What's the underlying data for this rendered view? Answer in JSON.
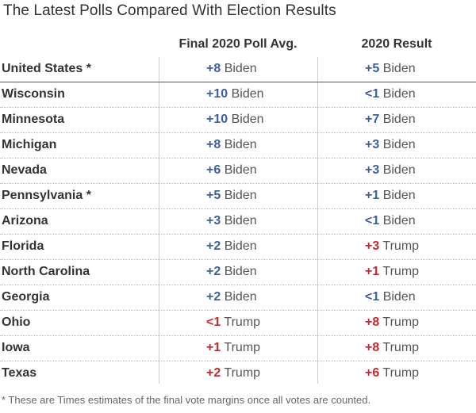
{
  "title": "The Latest Polls Compared With Election Results",
  "columns": {
    "poll": "Final 2020 Poll Avg.",
    "result": "2020 Result"
  },
  "footnote": "* These are Times estimates of the final vote margins once all votes are counted.",
  "colors": {
    "biden": "#3b5fa0",
    "trump": "#c42832"
  },
  "chart_data": {
    "type": "table",
    "title": "The Latest Polls Compared With Election Results",
    "columns": [
      "Final 2020 Poll Avg.",
      "2020 Result"
    ],
    "rows": [
      {
        "state": "United States *",
        "poll": {
          "margin": "+8",
          "winner": "Biden"
        },
        "result": {
          "margin": "+5",
          "winner": "Biden"
        }
      },
      {
        "state": "Wisconsin",
        "poll": {
          "margin": "+10",
          "winner": "Biden"
        },
        "result": {
          "margin": "<1",
          "winner": "Biden"
        }
      },
      {
        "state": "Minnesota",
        "poll": {
          "margin": "+10",
          "winner": "Biden"
        },
        "result": {
          "margin": "+7",
          "winner": "Biden"
        }
      },
      {
        "state": "Michigan",
        "poll": {
          "margin": "+8",
          "winner": "Biden"
        },
        "result": {
          "margin": "+3",
          "winner": "Biden"
        }
      },
      {
        "state": "Nevada",
        "poll": {
          "margin": "+6",
          "winner": "Biden"
        },
        "result": {
          "margin": "+3",
          "winner": "Biden"
        }
      },
      {
        "state": "Pennsylvania *",
        "poll": {
          "margin": "+5",
          "winner": "Biden"
        },
        "result": {
          "margin": "+1",
          "winner": "Biden"
        }
      },
      {
        "state": "Arizona",
        "poll": {
          "margin": "+3",
          "winner": "Biden"
        },
        "result": {
          "margin": "<1",
          "winner": "Biden"
        }
      },
      {
        "state": "Florida",
        "poll": {
          "margin": "+2",
          "winner": "Biden"
        },
        "result": {
          "margin": "+3",
          "winner": "Trump"
        }
      },
      {
        "state": "North Carolina",
        "poll": {
          "margin": "+2",
          "winner": "Biden"
        },
        "result": {
          "margin": "+1",
          "winner": "Trump"
        }
      },
      {
        "state": "Georgia",
        "poll": {
          "margin": "+2",
          "winner": "Biden"
        },
        "result": {
          "margin": "<1",
          "winner": "Biden"
        }
      },
      {
        "state": "Ohio",
        "poll": {
          "margin": "<1",
          "winner": "Trump"
        },
        "result": {
          "margin": "+8",
          "winner": "Trump"
        }
      },
      {
        "state": "Iowa",
        "poll": {
          "margin": "+1",
          "winner": "Trump"
        },
        "result": {
          "margin": "+8",
          "winner": "Trump"
        }
      },
      {
        "state": "Texas",
        "poll": {
          "margin": "+2",
          "winner": "Trump"
        },
        "result": {
          "margin": "+6",
          "winner": "Trump"
        }
      }
    ]
  }
}
